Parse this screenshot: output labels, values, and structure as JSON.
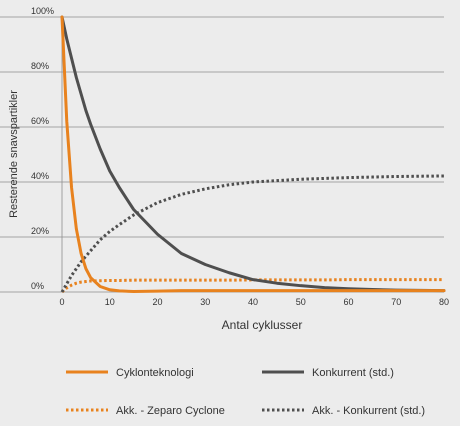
{
  "chart_data": {
    "type": "line",
    "xlabel": "Antal cyklusser",
    "ylabel": "Resterende snavspartikler",
    "xlim": [
      0,
      80
    ],
    "ylim": [
      0,
      100
    ],
    "x_ticks": [
      0,
      10,
      20,
      30,
      40,
      50,
      60,
      70,
      80
    ],
    "x_tick_labels": [
      "0",
      "10",
      "20",
      "30",
      "40",
      "50",
      "60",
      "70",
      "80"
    ],
    "y_ticks": [
      0,
      20,
      40,
      60,
      80,
      100
    ],
    "y_tick_labels": [
      "0%",
      "20%",
      "40%",
      "60%",
      "80%",
      "100%"
    ],
    "grid": "horizontal",
    "legend_position": "bottom",
    "x": [
      0,
      1,
      2,
      3,
      4,
      5,
      6,
      8,
      10,
      12,
      15,
      20,
      25,
      30,
      35,
      40,
      45,
      50,
      55,
      60,
      65,
      70,
      75,
      80
    ],
    "series": [
      {
        "name": "Cyklonteknologi",
        "style": "solid",
        "color": "#e8821e",
        "values": [
          100,
          62,
          38,
          23,
          14,
          8.5,
          5.2,
          2.0,
          0.8,
          0.4,
          0.2,
          0.3,
          0.5,
          0.5,
          0.5,
          0.5,
          0.5,
          0.5,
          0.5,
          0.5,
          0.5,
          0.5,
          0.5,
          0.5
        ]
      },
      {
        "name": "Konkurrent (std.)",
        "style": "solid",
        "color": "#4f4f4f",
        "values": [
          100,
          92,
          85,
          78,
          72,
          66,
          61,
          52,
          44,
          38,
          30,
          21,
          14,
          10,
          7,
          4.5,
          3.2,
          2.3,
          1.6,
          1.2,
          0.9,
          0.7,
          0.6,
          0.5
        ]
      },
      {
        "name": "Akk. - Zeparo Cyclone",
        "style": "dotted",
        "color": "#e8821e",
        "values": [
          0,
          1.5,
          2.5,
          3.2,
          3.6,
          3.8,
          4.0,
          4.1,
          4.2,
          4.2,
          4.3,
          4.3,
          4.3,
          4.3,
          4.3,
          4.4,
          4.4,
          4.4,
          4.4,
          4.5,
          4.5,
          4.5,
          4.5,
          4.5
        ]
      },
      {
        "name": "Akk. - Konkurrent (std.)",
        "style": "dotted",
        "color": "#4f4f4f",
        "values": [
          0,
          3,
          6,
          8.5,
          11,
          13,
          15,
          19,
          22,
          24.5,
          28,
          32.5,
          35.5,
          37.5,
          39,
          40,
          40.5,
          41,
          41.3,
          41.6,
          41.8,
          42,
          42.1,
          42.2
        ]
      }
    ]
  }
}
